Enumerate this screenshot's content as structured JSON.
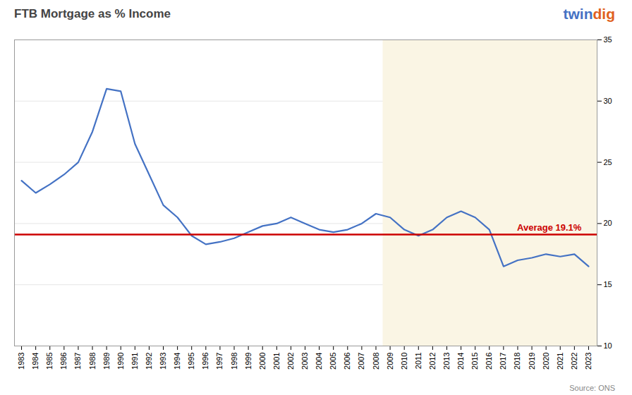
{
  "chart_data": {
    "type": "line",
    "title": "FTB Mortgage as % Income",
    "source": "Source: ONS",
    "logo": [
      {
        "text": "twin",
        "color": "#4472c4"
      },
      {
        "text": "dig",
        "color": "#e06020"
      }
    ],
    "x": [
      1983,
      1984,
      1985,
      1986,
      1987,
      1988,
      1989,
      1990,
      1991,
      1992,
      1993,
      1994,
      1995,
      1996,
      1997,
      1998,
      1999,
      2000,
      2001,
      2002,
      2003,
      2004,
      2005,
      2006,
      2007,
      2008,
      2009,
      2010,
      2011,
      2012,
      2013,
      2014,
      2015,
      2016,
      2017,
      2018,
      2019,
      2020,
      2021,
      2022,
      2023
    ],
    "values": [
      23.5,
      22.5,
      23.2,
      24.0,
      25.0,
      27.5,
      31.0,
      30.8,
      26.5,
      24.0,
      21.5,
      20.5,
      19.0,
      18.3,
      18.5,
      18.8,
      19.3,
      19.8,
      20.0,
      20.5,
      20.0,
      19.5,
      19.3,
      19.5,
      20.0,
      20.8,
      20.5,
      19.5,
      19.0,
      19.5,
      20.5,
      21.0,
      20.5,
      19.5,
      16.5,
      17.0,
      17.2,
      17.5,
      17.3,
      17.5,
      16.5
    ],
    "color": "#4472c4",
    "xlim": [
      1982.5,
      2023.6
    ],
    "xticks": [
      1983,
      1984,
      1985,
      1986,
      1987,
      1988,
      1989,
      1990,
      1991,
      1992,
      1993,
      1994,
      1995,
      1996,
      1997,
      1998,
      1999,
      2000,
      2001,
      2002,
      2003,
      2004,
      2005,
      2006,
      2007,
      2008,
      2009,
      2010,
      2011,
      2012,
      2013,
      2014,
      2015,
      2016,
      2017,
      2018,
      2019,
      2020,
      2021,
      2022,
      2023
    ],
    "ylim": [
      10,
      35
    ],
    "yticks": [
      10,
      15,
      20,
      25,
      30,
      35
    ],
    "grid": true,
    "average": {
      "value": 19.1,
      "label": "Average 19.1%",
      "color": "#cc0000"
    },
    "highlight": {
      "from": 2009,
      "color": "#faf5e4"
    }
  }
}
